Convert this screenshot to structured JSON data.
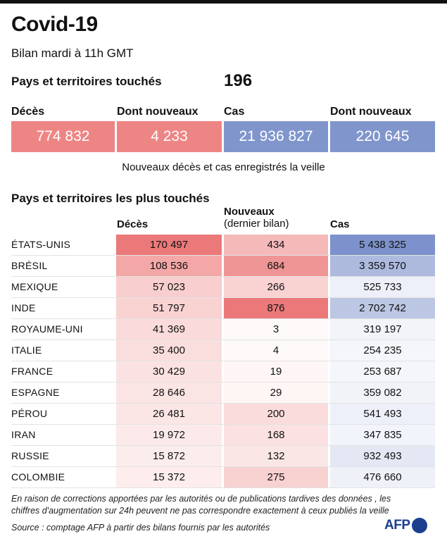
{
  "header": {
    "title": "Covid-19",
    "subtitle": "Bilan mardi à 11h GMT",
    "countries_label": "Pays et territoires touchés",
    "countries_value": "196"
  },
  "summary": [
    {
      "label": "Décès",
      "value": "774 832",
      "color": "#ee8585"
    },
    {
      "label": "Dont nouveaux",
      "value": "4 233",
      "color": "#ee8585"
    },
    {
      "label": "Cas",
      "value": "21 936 827",
      "color": "#7f95cc"
    },
    {
      "label": "Dont nouveaux",
      "value": "220 645",
      "color": "#7f95cc"
    }
  ],
  "note": "Nouveaux décès et cas enregistrés la veille",
  "table": {
    "section_title": "Pays et territoires les plus touchés",
    "headers": {
      "deaths": "Décès",
      "new": "Nouveaux",
      "new_sub": "(dernier bilan)",
      "cases": "Cas"
    },
    "rows": [
      {
        "country": "ÉTATS-UNIS",
        "deaths": "170 497",
        "new": "434",
        "cases": "5 438 325"
      },
      {
        "country": "BRÉSIL",
        "deaths": "108 536",
        "new": "684",
        "cases": "3 359 570"
      },
      {
        "country": "MEXIQUE",
        "deaths": "57 023",
        "new": "266",
        "cases": "525 733"
      },
      {
        "country": "INDE",
        "deaths": "51 797",
        "new": "876",
        "cases": "2 702 742"
      },
      {
        "country": "ROYAUME-UNI",
        "deaths": "41 369",
        "new": "3",
        "cases": "319 197"
      },
      {
        "country": "ITALIE",
        "deaths": "35 400",
        "new": "4",
        "cases": "254 235"
      },
      {
        "country": "FRANCE",
        "deaths": "30 429",
        "new": "19",
        "cases": "253 687"
      },
      {
        "country": "ESPAGNE",
        "deaths": "28 646",
        "new": "29",
        "cases": "359 082"
      },
      {
        "country": "PÉROU",
        "deaths": "26 481",
        "new": "200",
        "cases": "541 493"
      },
      {
        "country": "IRAN",
        "deaths": "19 972",
        "new": "168",
        "cases": "347 835"
      },
      {
        "country": "RUSSIE",
        "deaths": "15 872",
        "new": "132",
        "cases": "932 493"
      },
      {
        "country": "COLOMBIE",
        "deaths": "15 372",
        "new": "275",
        "cases": "476 660"
      }
    ],
    "colors": {
      "deaths": "#ea6a6a",
      "new": "#ea6a6a",
      "cases": "#6f86c6"
    }
  },
  "footer": {
    "disclaimer": "En raison de corrections apportées par les autorités ou de publications tardives des données , les chiffres d'augmentation sur 24h peuvent ne pas correspondre exactement à ceux publiés la veille",
    "source": "Source : comptage AFP à partir des bilans fournis par les autorités",
    "logo": "AFP"
  }
}
